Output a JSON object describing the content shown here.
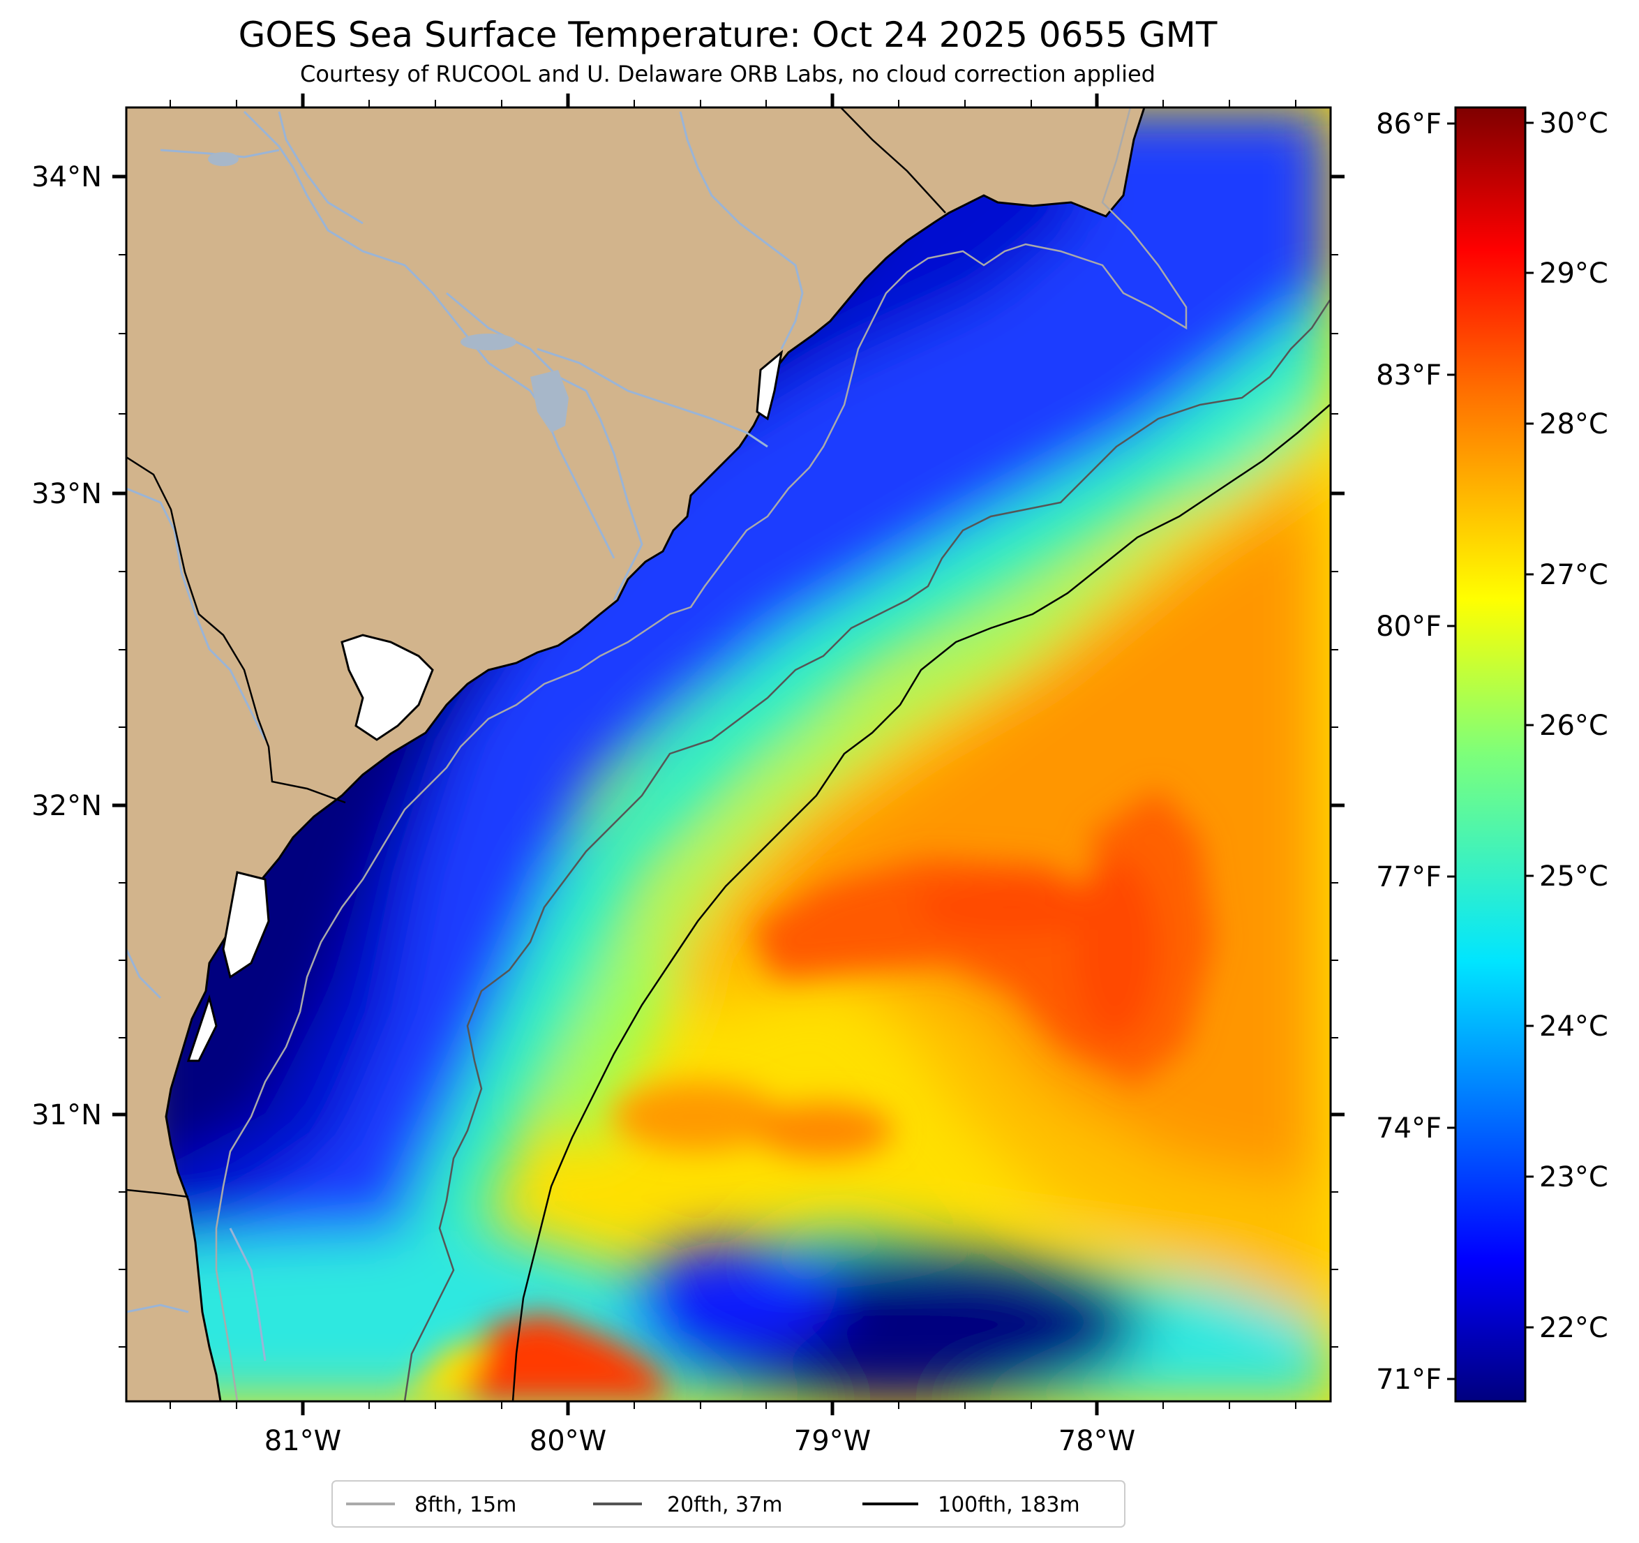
{
  "title": "GOES Sea Surface Temperature: Oct 24 2025 0655 GMT",
  "subtitle": "Courtesy of RUCOOL and U. Delaware ORB Labs, no cloud correction applied",
  "map": {
    "lon_range": [
      -81.67,
      -77.1
    ],
    "lat_range": [
      30.1,
      34.23
    ],
    "lon_ticks": [
      "81°W",
      "80°W",
      "79°W",
      "78°W"
    ],
    "lat_ticks": [
      "34°N",
      "33°N",
      "32°N",
      "31°N"
    ]
  },
  "fahrenheit_ticks": [
    "86°F",
    "83°F",
    "80°F",
    "77°F",
    "74°F",
    "71°F"
  ],
  "colorbar": {
    "unit": "°C",
    "range": [
      21.5,
      30.1
    ],
    "ticks": [
      "30°C",
      "29°C",
      "28°C",
      "27°C",
      "26°C",
      "25°C",
      "24°C",
      "23°C",
      "22°C"
    ],
    "colormap": "jet"
  },
  "legend": [
    {
      "label": "8fth, 15m",
      "color": "#aaaaaa"
    },
    {
      "label": "20fth, 37m",
      "color": "#555555"
    },
    {
      "label": "100fth, 183m",
      "color": "#000000"
    }
  ],
  "colors": {
    "land": "#d2b48c",
    "rivers": "#9ab4d6",
    "coast": "#000000"
  }
}
